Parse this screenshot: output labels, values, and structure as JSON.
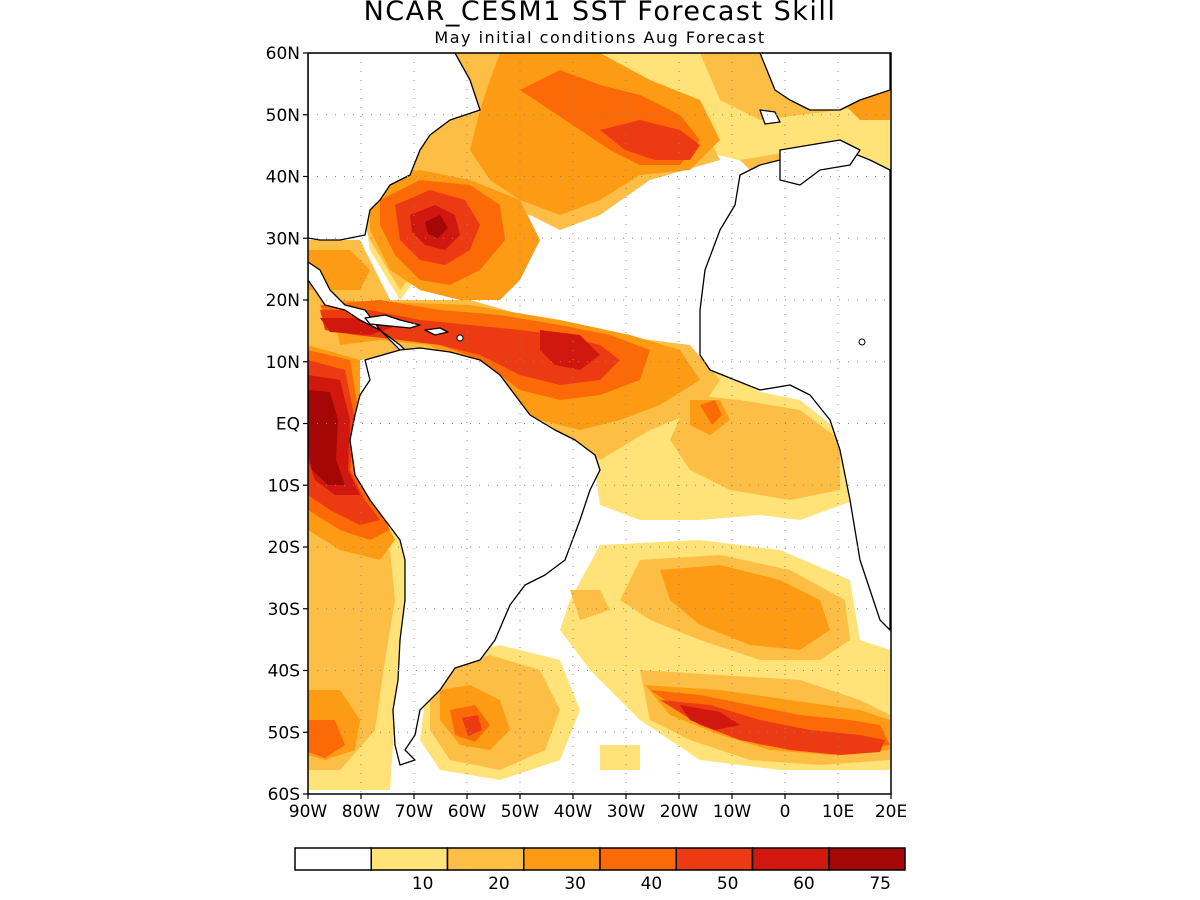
{
  "title": "NCAR_CESM1  SST Forecast Skill",
  "subtitle": "May initial conditions  Aug Forecast",
  "lat_labels": [
    "60N",
    "50N",
    "40N",
    "30N",
    "20N",
    "10N",
    "EQ",
    "10S",
    "20S",
    "30S",
    "40S",
    "50S",
    "60S"
  ],
  "lon_labels": [
    "90W",
    "80W",
    "70W",
    "60W",
    "50W",
    "40W",
    "30W",
    "20W",
    "10W",
    "0",
    "10E",
    "20E"
  ],
  "legend": {
    "bins": [
      {
        "color": "#ffffff"
      },
      {
        "color": "#ffe278",
        "label": "10"
      },
      {
        "color": "#fdbe46",
        "label": "20"
      },
      {
        "color": "#fd9c14",
        "label": "30"
      },
      {
        "color": "#fc6a07",
        "label": "40"
      },
      {
        "color": "#ec3a12",
        "label": "50"
      },
      {
        "color": "#d0180f",
        "label": "60"
      },
      {
        "color": "#a50606",
        "label": "75"
      }
    ]
  },
  "colors": {
    "white": "#ffffff",
    "yellow": "#ffe278",
    "lightorange": "#fdbe46",
    "orange": "#fd9c14",
    "darkorange": "#fc6a07",
    "red": "#ec3a12",
    "darkred": "#d0180f",
    "maroon": "#a50606"
  }
}
